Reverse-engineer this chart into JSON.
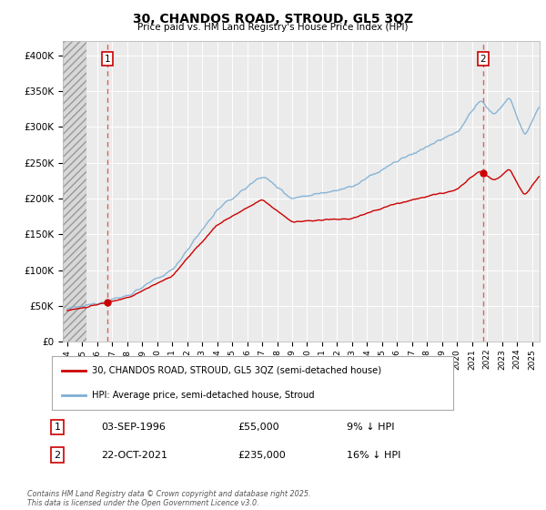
{
  "title": "30, CHANDOS ROAD, STROUD, GL5 3QZ",
  "subtitle": "Price paid vs. HM Land Registry's House Price Index (HPI)",
  "legend_house": "30, CHANDOS ROAD, STROUD, GL5 3QZ (semi-detached house)",
  "legend_hpi": "HPI: Average price, semi-detached house, Stroud",
  "annotation1_label": "1",
  "annotation1_date": "03-SEP-1996",
  "annotation1_price": "£55,000",
  "annotation1_hpi": "9% ↓ HPI",
  "annotation2_label": "2",
  "annotation2_date": "22-OCT-2021",
  "annotation2_price": "£235,000",
  "annotation2_hpi": "16% ↓ HPI",
  "footer": "Contains HM Land Registry data © Crown copyright and database right 2025.\nThis data is licensed under the Open Government Licence v3.0.",
  "house_color": "#cc0000",
  "hpi_color": "#7eafd4",
  "annotation_line_color": "#e06060",
  "background_color": "#ffffff",
  "plot_bg_color": "#ebebeb",
  "ylim": [
    0,
    420000
  ],
  "yticks": [
    0,
    50000,
    100000,
    150000,
    200000,
    250000,
    300000,
    350000,
    400000
  ],
  "year_start": 1994,
  "year_end": 2025,
  "sale1_year_float": 1996.667,
  "sale1_price": 55000,
  "sale2_year_float": 2021.75,
  "sale2_price": 235000
}
